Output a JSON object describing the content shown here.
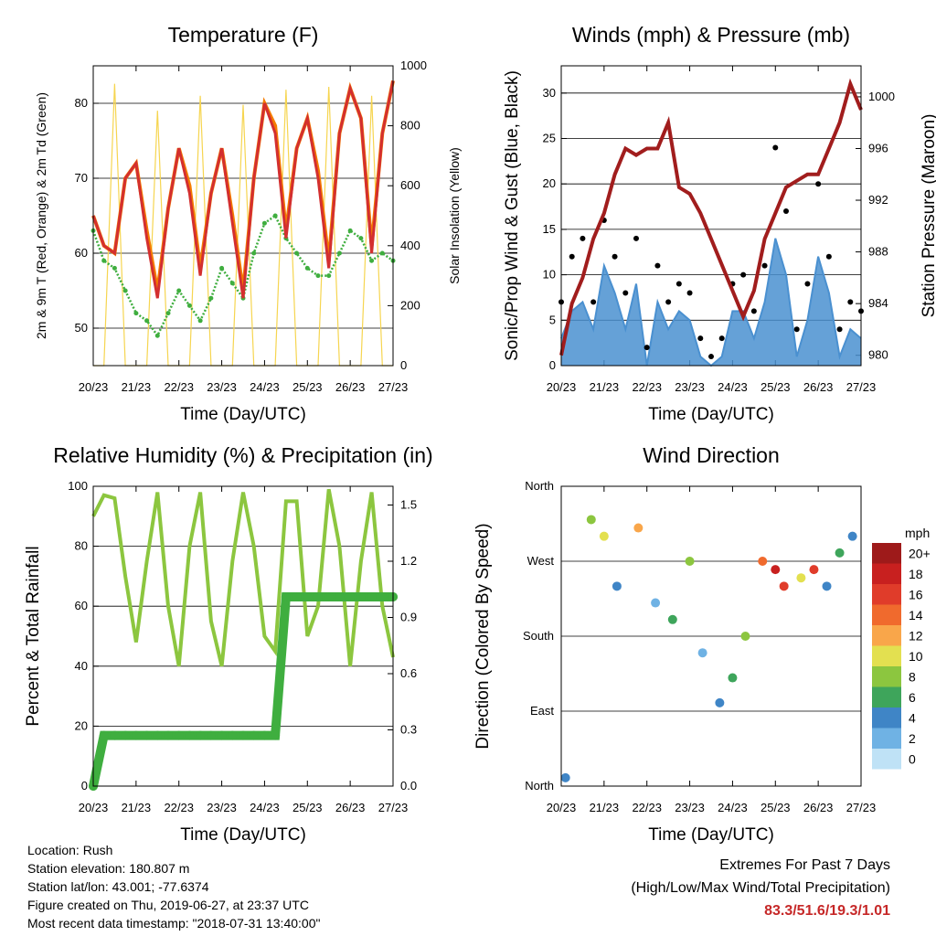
{
  "x_ticks": [
    "20/23",
    "21/23",
    "22/23",
    "23/23",
    "24/23",
    "25/23",
    "26/23",
    "27/23"
  ],
  "x_label": "Time (Day/UTC)",
  "colors": {
    "temp2m": "#d32f2f",
    "temp9m": "#f57c00",
    "dewpoint": "#3fae3f",
    "solar": "#f6d550",
    "gust": "#000000",
    "wind": "#4a90d0",
    "pressure": "#a11d1d",
    "rh": "#8cc63f",
    "precip": "#3fae3f",
    "extremes": "#c62828"
  },
  "speed_legend": {
    "unit": "mph",
    "levels": [
      "20+",
      "18",
      "16",
      "14",
      "12",
      "10",
      "8",
      "6",
      "4",
      "2",
      "0"
    ],
    "colors": [
      "#9e1a1a",
      "#c8201f",
      "#e03c2a",
      "#f06a2d",
      "#f9a64a",
      "#e3e050",
      "#8cc63f",
      "#3ea55b",
      "#3f85c6",
      "#6fb2e4",
      "#bfe2f6"
    ]
  },
  "chart_data": [
    {
      "type": "line",
      "title": "Temperature (F)",
      "xlabel": "Time (Day/UTC)",
      "ylabel": "2m & 9m T (Red, Orange) & 2m Td (Green)",
      "y2label": "Solar Insolation (Yellow)",
      "ylim": [
        45,
        85
      ],
      "y_ticks": [
        50,
        60,
        70,
        80
      ],
      "y2lim": [
        0,
        1000
      ],
      "y2_ticks": [
        0,
        200,
        400,
        600,
        800,
        1000
      ],
      "x": [
        0,
        0.25,
        0.5,
        0.75,
        1,
        1.25,
        1.5,
        1.75,
        2,
        2.25,
        2.5,
        2.75,
        3,
        3.25,
        3.5,
        3.75,
        4,
        4.25,
        4.5,
        4.75,
        5,
        5.25,
        5.5,
        5.75,
        6,
        6.25,
        6.5,
        6.75,
        7
      ],
      "series": [
        {
          "name": "2m T",
          "values": [
            65,
            61,
            60,
            70,
            72,
            62,
            54,
            66,
            74,
            68,
            57,
            68,
            74,
            64,
            54,
            70,
            80,
            76,
            62,
            74,
            78,
            70,
            58,
            76,
            82,
            78,
            60,
            76,
            83
          ]
        },
        {
          "name": "9m T",
          "values": [
            65,
            61,
            60,
            70,
            72,
            63,
            55,
            66,
            74,
            69,
            58,
            68,
            74,
            65,
            55,
            70,
            80,
            77,
            63,
            74,
            78,
            71,
            59,
            76,
            82,
            78,
            61,
            76,
            83
          ]
        },
        {
          "name": "2m Td",
          "values": [
            63,
            59,
            58,
            55,
            52,
            51,
            49,
            52,
            55,
            53,
            51,
            54,
            58,
            56,
            54,
            60,
            64,
            65,
            62,
            60,
            58,
            57,
            57,
            60,
            63,
            62,
            59,
            60,
            59
          ]
        },
        {
          "name": "Solar Insolation",
          "values": [
            0,
            0,
            940,
            0,
            0,
            0,
            850,
            0,
            0,
            0,
            900,
            0,
            0,
            0,
            870,
            0,
            0,
            0,
            920,
            0,
            0,
            0,
            930,
            0,
            0,
            0,
            900,
            0,
            0
          ]
        }
      ]
    },
    {
      "type": "line",
      "title": "Winds (mph) & Pressure (mb)",
      "xlabel": "Time (Day/UTC)",
      "ylabel": "Sonic/Prop Wind & Gust (Blue, Black)",
      "y2label": "Station Pressure (Maroon)",
      "ylim": [
        0,
        33
      ],
      "y_ticks": [
        0,
        5,
        10,
        15,
        20,
        25,
        30
      ],
      "y2lim": [
        979.2,
        1002.4
      ],
      "y2_ticks": [
        980,
        984,
        988,
        992,
        996,
        1000
      ],
      "x": [
        0,
        0.25,
        0.5,
        0.75,
        1,
        1.25,
        1.5,
        1.75,
        2,
        2.25,
        2.5,
        2.75,
        3,
        3.25,
        3.5,
        3.75,
        4,
        4.25,
        4.5,
        4.75,
        5,
        5.25,
        5.5,
        5.75,
        6,
        6.25,
        6.5,
        6.75,
        7
      ],
      "series": [
        {
          "name": "Wind",
          "values": [
            3,
            6,
            7,
            4,
            11,
            8,
            4,
            9,
            0,
            7,
            4,
            6,
            5,
            1,
            0,
            1,
            6,
            6,
            3,
            7,
            14,
            10,
            1,
            5,
            12,
            8,
            1,
            4,
            3
          ]
        },
        {
          "name": "Gust",
          "values": [
            7,
            12,
            14,
            7,
            16,
            12,
            8,
            14,
            2,
            11,
            7,
            9,
            8,
            3,
            1,
            3,
            9,
            10,
            6,
            11,
            24,
            17,
            4,
            9,
            20,
            12,
            4,
            7,
            6
          ]
        },
        {
          "name": "Station Pressure",
          "values": [
            980,
            984,
            986,
            989,
            991,
            994,
            996,
            995.5,
            996,
            996,
            998,
            993,
            992.5,
            991,
            989,
            987,
            985,
            983,
            985,
            989,
            991,
            993,
            993.5,
            994,
            994,
            996,
            998,
            1001,
            999
          ]
        }
      ]
    },
    {
      "type": "line",
      "title": "Relative Humidity (%) & Precipitation (in)",
      "xlabel": "Time (Day/UTC)",
      "ylabel": "Percent & Total Rainfall",
      "ylim": [
        0,
        100
      ],
      "y_ticks": [
        0,
        20,
        40,
        60,
        80,
        100
      ],
      "y2lim": [
        0,
        1.6
      ],
      "y2_ticks": [
        "0.0",
        "0.3",
        "0.6",
        "0.9",
        "1.2",
        "1.5"
      ],
      "x": [
        0,
        0.25,
        0.5,
        0.75,
        1,
        1.25,
        1.5,
        1.75,
        2,
        2.25,
        2.5,
        2.75,
        3,
        3.25,
        3.5,
        3.75,
        4,
        4.25,
        4.5,
        4.75,
        5,
        5.25,
        5.5,
        5.75,
        6,
        6.25,
        6.5,
        6.75,
        7
      ],
      "series": [
        {
          "name": "RH",
          "values": [
            90,
            97,
            96,
            70,
            48,
            75,
            98,
            60,
            40,
            80,
            98,
            55,
            40,
            75,
            98,
            80,
            50,
            45,
            95,
            95,
            50,
            60,
            99,
            80,
            40,
            75,
            98,
            60,
            43
          ]
        },
        {
          "name": "Precipitation",
          "values": [
            0,
            0.27,
            0.27,
            0.27,
            0.27,
            0.27,
            0.27,
            0.27,
            0.27,
            0.27,
            0.27,
            0.27,
            0.27,
            0.27,
            0.27,
            0.27,
            0.27,
            0.27,
            1.01,
            1.01,
            1.01,
            1.01,
            1.01,
            1.01,
            1.01,
            1.01,
            1.01,
            1.01,
            1.01
          ]
        }
      ]
    },
    {
      "type": "scatter",
      "title": "Wind Direction",
      "xlabel": "Time (Day/UTC)",
      "ylabel": "Direction (Colored By Speed)",
      "ylim": [
        0,
        360
      ],
      "y_ticks": [
        "North",
        "East",
        "South",
        "West",
        "North"
      ],
      "x": [
        0.1,
        0.7,
        1.0,
        1.3,
        1.8,
        2.2,
        2.6,
        3.0,
        3.3,
        3.7,
        4.0,
        4.3,
        4.7,
        5.0,
        5.2,
        5.6,
        5.9,
        6.2,
        6.5,
        6.8
      ],
      "direction": [
        10,
        320,
        300,
        240,
        310,
        220,
        200,
        270,
        160,
        100,
        130,
        180,
        270,
        260,
        240,
        250,
        260,
        240,
        280,
        300
      ],
      "speed": [
        4,
        8,
        10,
        4,
        12,
        2,
        6,
        8,
        2,
        4,
        6,
        8,
        14,
        18,
        16,
        10,
        16,
        4,
        6,
        4
      ]
    }
  ],
  "info": {
    "location": "Location: Rush",
    "elevation": "Station elevation: 180.807 m",
    "latlon": "Station lat/lon: 43.001; -77.6374",
    "created": "Figure created on Thu, 2019-06-27, at 23:37 UTC",
    "timestamp": "Most recent data timestamp: \"2018-07-31 13:40:00\""
  },
  "extremes": {
    "title": "Extremes For Past 7 Days",
    "subtitle": "(High/Low/Max Wind/Total Precipitation)",
    "values": "83.3/51.6/19.3/1.01"
  }
}
